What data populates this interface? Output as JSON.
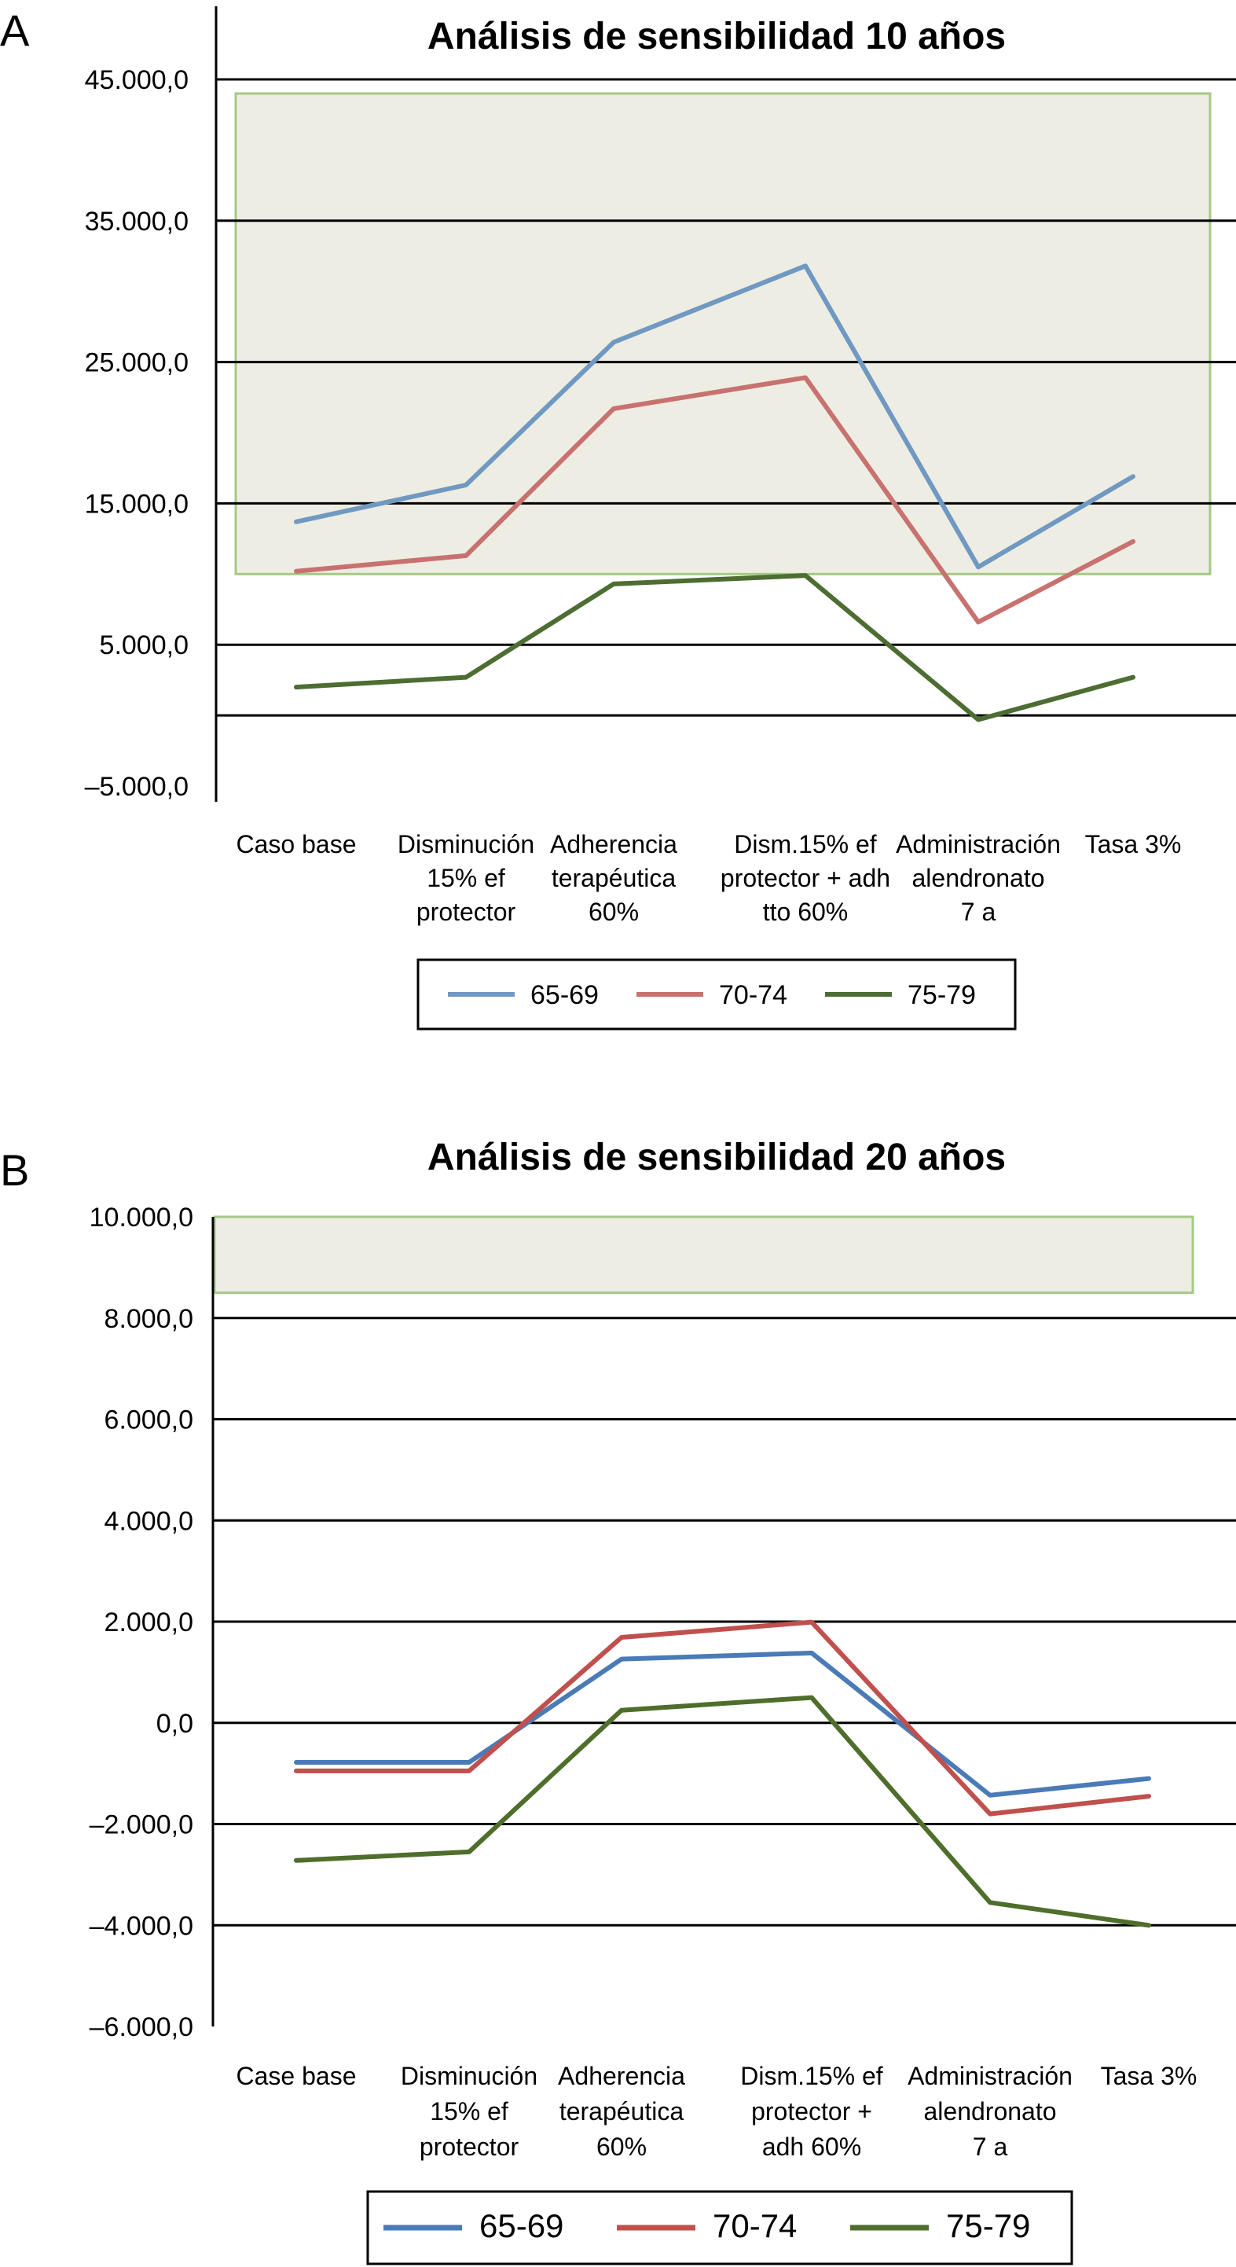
{
  "chart_data": [
    {
      "panel": "A",
      "type": "line",
      "title": "Análisis de sensibilidad 10 años",
      "categories": [
        [
          "Caso base"
        ],
        [
          "Disminución",
          "15% ef",
          "protector"
        ],
        [
          "Adherencia",
          "terapéutica",
          "60%"
        ],
        [
          "Dism.15% ef",
          "protector + adh",
          "tto 60%"
        ],
        [
          "Administración",
          "alendronato",
          "7 a"
        ],
        [
          "Tasa 3%"
        ]
      ],
      "series": [
        {
          "name": "65-69",
          "color": "#7099c2",
          "values": [
            13700,
            16300,
            26400,
            31800,
            10500,
            16900
          ]
        },
        {
          "name": "70-74",
          "color": "#c87270",
          "values": [
            10200,
            11300,
            21700,
            23900,
            6600,
            12300
          ]
        },
        {
          "name": "75-79",
          "color": "#4d6d32",
          "values": [
            2000,
            2700,
            9300,
            9900,
            -300,
            2700
          ]
        }
      ],
      "yticks": [
        45000,
        35000,
        25000,
        15000,
        5000,
        -5000
      ],
      "ytick_labels": [
        "45.000,0",
        "35.000,0",
        "25.000,0",
        "15.000,0",
        "5.000,0",
        "–5.000,0"
      ],
      "extra_gridline": 0,
      "ylim": [
        -5000,
        50000
      ],
      "shaded_band": [
        10000,
        44000
      ],
      "grid": true,
      "legend_position": "bottom-center"
    },
    {
      "panel": "B",
      "type": "line",
      "title": "Análisis de sensibilidad 20 años",
      "categories": [
        [
          "Case base"
        ],
        [
          "Disminución",
          "15% ef",
          "protector"
        ],
        [
          "Adherencia",
          "terapéutica",
          "60%"
        ],
        [
          "Dism.15% ef",
          "protector +",
          "adh 60%"
        ],
        [
          "Administración",
          "alendronato",
          "7 a"
        ],
        [
          "Tasa 3%"
        ]
      ],
      "series": [
        {
          "name": "65-69",
          "color": "#4a7bb7",
          "values": [
            -780,
            -780,
            1260,
            1380,
            -1430,
            -1100
          ]
        },
        {
          "name": "70-74",
          "color": "#c0504d",
          "values": [
            -950,
            -950,
            1690,
            1990,
            -1800,
            -1450
          ]
        },
        {
          "name": "75-79",
          "color": "#4f6e2b",
          "values": [
            -2720,
            -2550,
            250,
            500,
            -3550,
            -4000
          ]
        }
      ],
      "yticks": [
        10000,
        8000,
        6000,
        4000,
        2000,
        0,
        -2000,
        -4000,
        -6000
      ],
      "ytick_labels": [
        "10.000,0",
        "8.000,0",
        "6.000,0",
        "4.000,0",
        "2.000,0",
        "0,0",
        "–2.000,0",
        "–4.000,0",
        "–6.000,0"
      ],
      "ylim": [
        -6000,
        10000
      ],
      "shaded_band": [
        8500,
        10000
      ],
      "grid": true,
      "legend_position": "bottom-center"
    }
  ]
}
